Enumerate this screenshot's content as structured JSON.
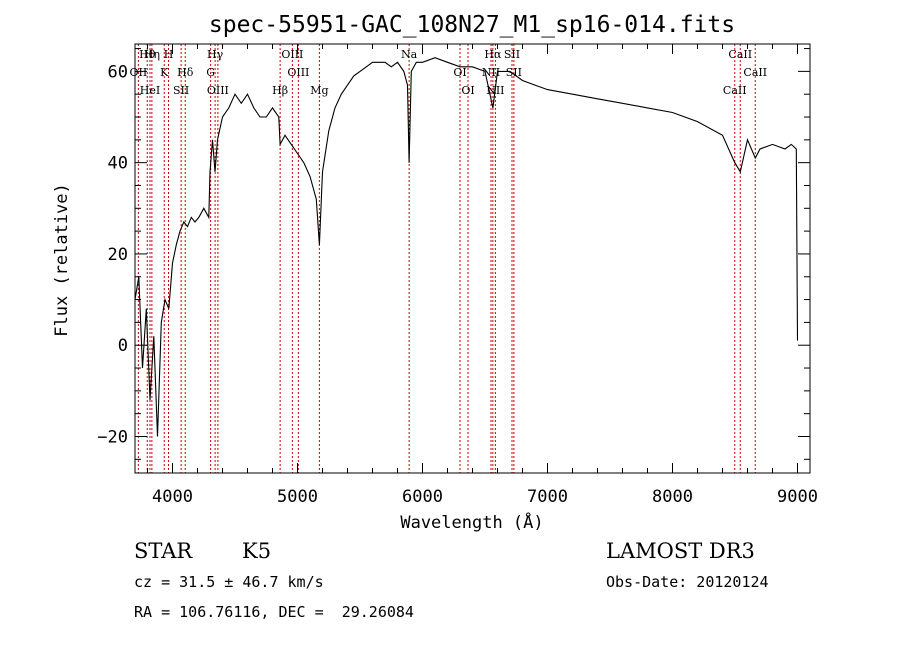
{
  "chart_data": {
    "type": "line",
    "title": "spec-55951-GAC_108N27_M1_sp16-014.fits",
    "xlabel": "Wavelength (Å)",
    "ylabel": "Flux (relative)",
    "xlim": [
      3700,
      9100
    ],
    "ylim": [
      -28,
      66
    ],
    "xticks": [
      4000,
      5000,
      6000,
      7000,
      8000,
      9000
    ],
    "xtick_labels": [
      "4000",
      "5000",
      "6000",
      "7000",
      "8000",
      "9000"
    ],
    "yticks": [
      -20,
      0,
      20,
      40,
      60
    ],
    "ytick_labels": [
      "−20",
      "0",
      "20",
      "40",
      "60"
    ],
    "grid": false,
    "series": [
      {
        "name": "spectrum",
        "x": [
          3700,
          3730,
          3760,
          3790,
          3820,
          3850,
          3880,
          3910,
          3940,
          3970,
          4000,
          4030,
          4060,
          4090,
          4120,
          4150,
          4180,
          4210,
          4250,
          4290,
          4300,
          4320,
          4340,
          4360,
          4400,
          4450,
          4500,
          4550,
          4600,
          4650,
          4700,
          4750,
          4800,
          4850,
          4861,
          4900,
          4950,
          5000,
          5050,
          5100,
          5150,
          5175,
          5200,
          5250,
          5300,
          5350,
          5400,
          5450,
          5500,
          5550,
          5600,
          5650,
          5700,
          5750,
          5800,
          5850,
          5880,
          5893,
          5910,
          5950,
          6000,
          6100,
          6200,
          6300,
          6400,
          6500,
          6563,
          6600,
          6700,
          6800,
          6900,
          7000,
          7200,
          7400,
          7600,
          7800,
          8000,
          8200,
          8400,
          8498,
          8542,
          8600,
          8662,
          8700,
          8800,
          8900,
          8950,
          8990,
          9000
        ],
        "y": [
          10,
          15,
          -5,
          8,
          -12,
          2,
          -20,
          5,
          10,
          8,
          18,
          22,
          25,
          27,
          26,
          28,
          27,
          28,
          30,
          28,
          38,
          45,
          38,
          45,
          50,
          52,
          55,
          53,
          55,
          52,
          50,
          50,
          52,
          50,
          44,
          46,
          44,
          42,
          40,
          37,
          32,
          22,
          38,
          47,
          52,
          55,
          57,
          59,
          60,
          61,
          62,
          62,
          62,
          61,
          62,
          60,
          57,
          40,
          60,
          62,
          62,
          63,
          62,
          61,
          61,
          60,
          52,
          60,
          60,
          58,
          57,
          56,
          55,
          54,
          53,
          52,
          51,
          49,
          46,
          40,
          38,
          45,
          41,
          43,
          44,
          43,
          44,
          43,
          1
        ]
      }
    ],
    "line_markers": [
      {
        "label": "Hθ",
        "wave": 3798
      },
      {
        "label": "OII",
        "wave": 3727
      },
      {
        "label": "HeI",
        "wave": 3820
      },
      {
        "label": "Hη",
        "wave": 3835
      },
      {
        "label": "K",
        "wave": 3934
      },
      {
        "label": "SII",
        "wave": 4069
      },
      {
        "label": "H",
        "wave": 3968
      },
      {
        "label": "Hδ",
        "wave": 4102
      },
      {
        "label": "OIII",
        "wave": 4363
      },
      {
        "label": "Hγ",
        "wave": 4341
      },
      {
        "label": "G",
        "wave": 4305
      },
      {
        "label": "Hβ",
        "wave": 4861
      },
      {
        "label": "OIII",
        "wave": 4959
      },
      {
        "label": "OIII",
        "wave": 5007
      },
      {
        "label": "Mg",
        "wave": 5175
      },
      {
        "label": "Na",
        "wave": 5893
      },
      {
        "label": "OI",
        "wave": 6300
      },
      {
        "label": "OI",
        "wave": 6364
      },
      {
        "label": "Hα",
        "wave": 6563
      },
      {
        "label": "NII",
        "wave": 6548
      },
      {
        "label": "NII",
        "wave": 6583
      },
      {
        "label": "SII",
        "wave": 6716
      },
      {
        "label": "SII",
        "wave": 6731
      },
      {
        "label": "CaII",
        "wave": 8498
      },
      {
        "label": "CaII",
        "wave": 8542
      },
      {
        "label": "CaII",
        "wave": 8662
      }
    ]
  },
  "info": {
    "class": "STAR",
    "subclass": "K5",
    "survey": "LAMOST DR3",
    "cz": "cz = 31.5 ± 46.7 km/s",
    "obs_date": "Obs-Date: 20120124",
    "radec": "RA = 106.76116, DEC =  29.26084"
  },
  "colors": {
    "marker": "#cc0000",
    "line": "#000000"
  }
}
